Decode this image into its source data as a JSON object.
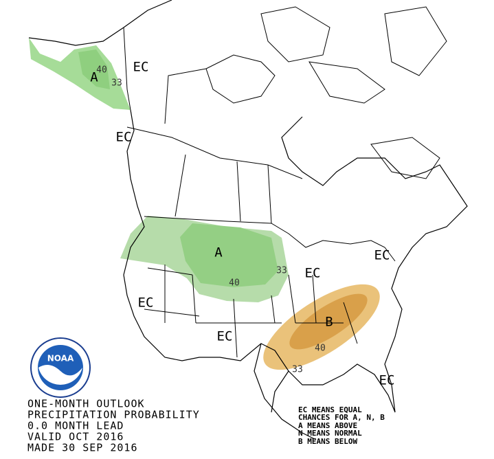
{
  "map_labels": [
    "EC",
    "A",
    "40",
    "33",
    "EC",
    "A",
    "33",
    "40",
    "EC",
    "EC",
    "EC",
    "EC",
    "B",
    "40",
    "33",
    "EC"
  ],
  "title_lines": [
    "ONE-MONTH OUTLOOK",
    "PRECIPITATION PROBABILITY",
    "0.0 MONTH LEAD",
    "VALID OCT 2016",
    "MADE 30 SEP 2016"
  ],
  "legend_lines": [
    "EC MEANS EQUAL",
    "CHANCES FOR A, N, B",
    "A MEANS ABOVE",
    "N MEANS NORMAL",
    "B MEANS BELOW"
  ],
  "logo": {
    "text": "NOAA"
  }
}
